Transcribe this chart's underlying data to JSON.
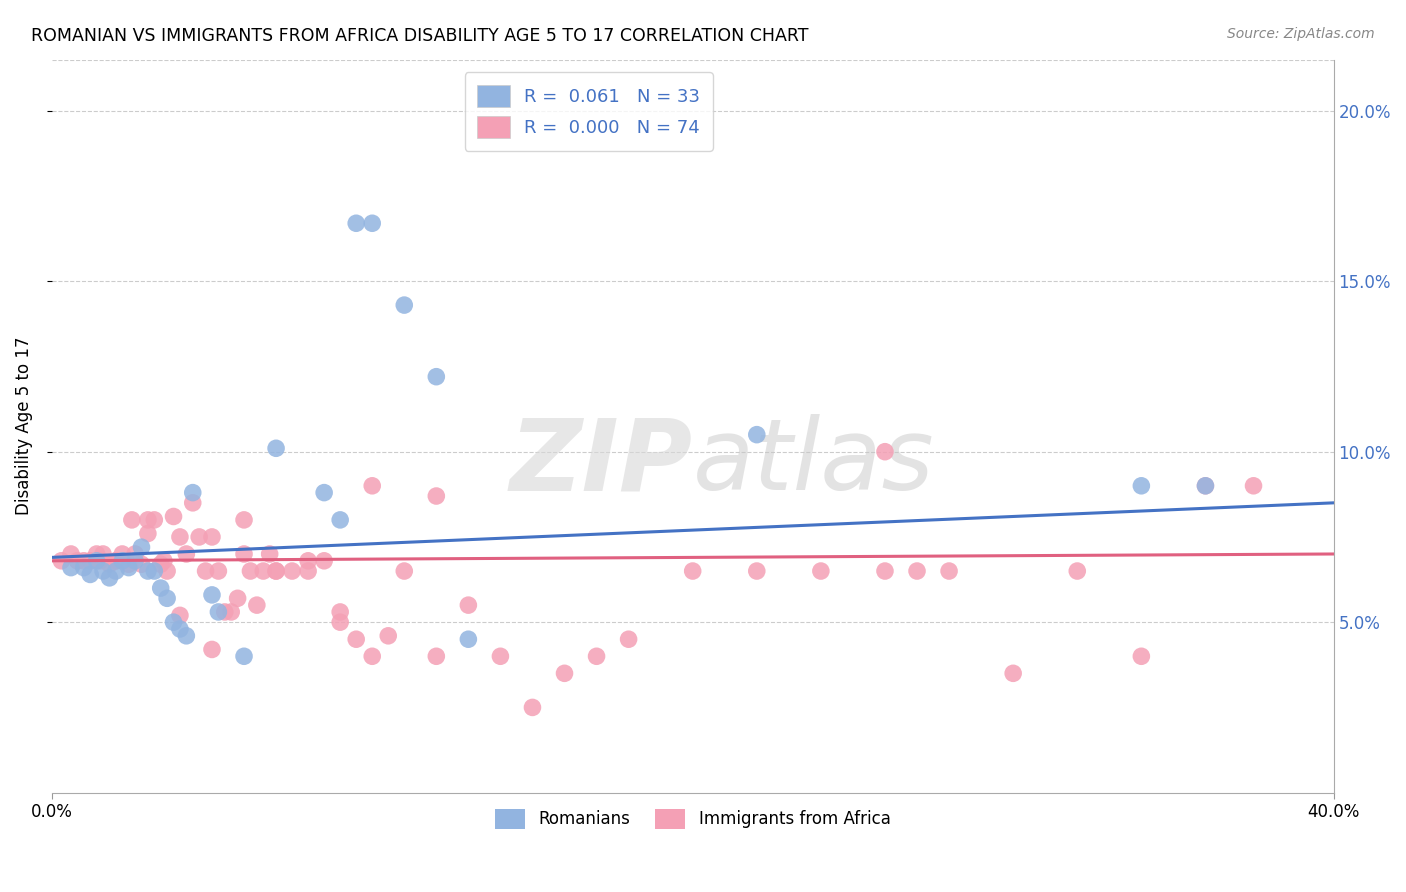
{
  "title": "ROMANIAN VS IMMIGRANTS FROM AFRICA DISABILITY AGE 5 TO 17 CORRELATION CHART",
  "source": "Source: ZipAtlas.com",
  "ylabel": "Disability Age 5 to 17",
  "xmin": 0.0,
  "xmax": 0.4,
  "ymin": 0.0,
  "ymax": 0.215,
  "yticks": [
    0.05,
    0.1,
    0.15,
    0.2
  ],
  "ytick_labels": [
    "5.0%",
    "10.0%",
    "15.0%",
    "20.0%"
  ],
  "blue_R": "0.061",
  "blue_N": "33",
  "pink_R": "0.000",
  "pink_N": "74",
  "blue_color": "#92b4e0",
  "pink_color": "#f4a0b5",
  "blue_line_color": "#4472c4",
  "pink_line_color": "#e06080",
  "blue_trend_start": 0.069,
  "blue_trend_end": 0.085,
  "pink_trend_start": 0.068,
  "pink_trend_end": 0.07,
  "blue_scatter_x": [
    0.006,
    0.01,
    0.012,
    0.014,
    0.016,
    0.018,
    0.02,
    0.022,
    0.024,
    0.026,
    0.028,
    0.03,
    0.032,
    0.034,
    0.036,
    0.038,
    0.04,
    0.042,
    0.044,
    0.05,
    0.052,
    0.06,
    0.07,
    0.085,
    0.09,
    0.095,
    0.1,
    0.11,
    0.12,
    0.13,
    0.22,
    0.34,
    0.36
  ],
  "blue_scatter_y": [
    0.066,
    0.066,
    0.064,
    0.068,
    0.065,
    0.063,
    0.065,
    0.068,
    0.066,
    0.068,
    0.072,
    0.065,
    0.065,
    0.06,
    0.057,
    0.05,
    0.048,
    0.046,
    0.088,
    0.058,
    0.053,
    0.04,
    0.101,
    0.088,
    0.08,
    0.167,
    0.167,
    0.143,
    0.122,
    0.045,
    0.105,
    0.09,
    0.09
  ],
  "pink_scatter_x": [
    0.003,
    0.006,
    0.008,
    0.01,
    0.012,
    0.014,
    0.016,
    0.018,
    0.02,
    0.022,
    0.024,
    0.026,
    0.028,
    0.03,
    0.032,
    0.034,
    0.036,
    0.038,
    0.04,
    0.042,
    0.044,
    0.046,
    0.048,
    0.05,
    0.052,
    0.054,
    0.056,
    0.058,
    0.06,
    0.062,
    0.064,
    0.066,
    0.068,
    0.07,
    0.075,
    0.08,
    0.085,
    0.09,
    0.095,
    0.1,
    0.105,
    0.11,
    0.12,
    0.13,
    0.14,
    0.15,
    0.16,
    0.17,
    0.18,
    0.2,
    0.22,
    0.24,
    0.26,
    0.27,
    0.28,
    0.3,
    0.32,
    0.34,
    0.36,
    0.375,
    0.015,
    0.02,
    0.025,
    0.03,
    0.035,
    0.04,
    0.05,
    0.06,
    0.07,
    0.08,
    0.09,
    0.1,
    0.12,
    0.26
  ],
  "pink_scatter_y": [
    0.068,
    0.07,
    0.068,
    0.068,
    0.068,
    0.07,
    0.07,
    0.067,
    0.068,
    0.07,
    0.067,
    0.07,
    0.067,
    0.076,
    0.08,
    0.067,
    0.065,
    0.081,
    0.075,
    0.07,
    0.085,
    0.075,
    0.065,
    0.075,
    0.065,
    0.053,
    0.053,
    0.057,
    0.07,
    0.065,
    0.055,
    0.065,
    0.07,
    0.065,
    0.065,
    0.065,
    0.068,
    0.05,
    0.045,
    0.04,
    0.046,
    0.065,
    0.04,
    0.055,
    0.04,
    0.025,
    0.035,
    0.04,
    0.045,
    0.065,
    0.065,
    0.065,
    0.065,
    0.065,
    0.065,
    0.035,
    0.065,
    0.04,
    0.09,
    0.09,
    0.068,
    0.068,
    0.08,
    0.08,
    0.068,
    0.052,
    0.042,
    0.08,
    0.065,
    0.068,
    0.053,
    0.09,
    0.087,
    0.1
  ]
}
